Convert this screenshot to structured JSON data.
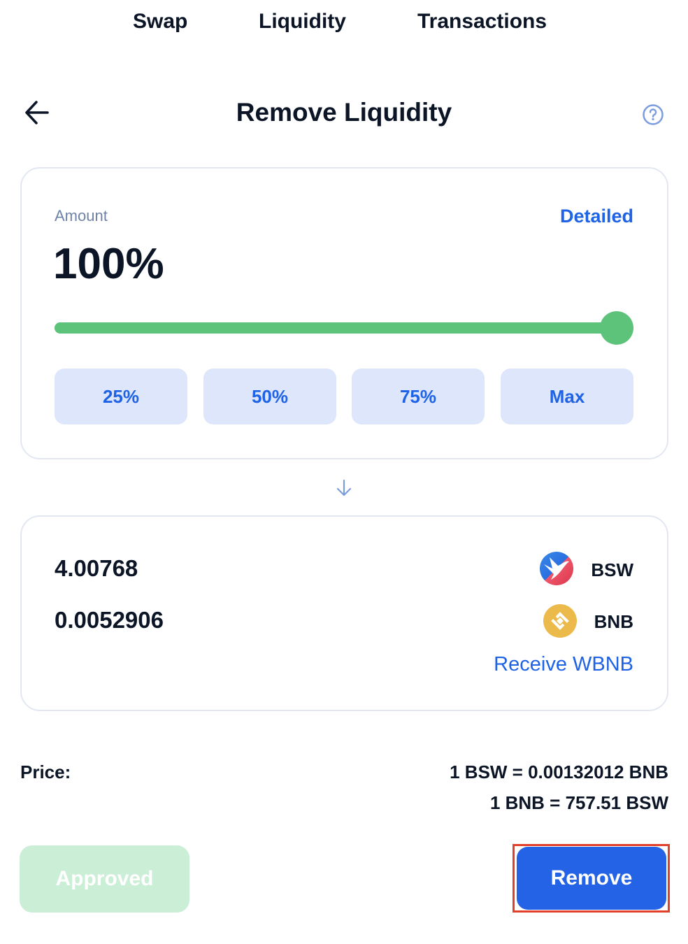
{
  "nav": {
    "swap": "Swap",
    "liquidity": "Liquidity",
    "transactions": "Transactions"
  },
  "header": {
    "title": "Remove Liquidity",
    "back_icon": "arrow-left-icon",
    "help_icon": "question-circle-icon"
  },
  "amount": {
    "label": "Amount",
    "detailed": "Detailed",
    "value": "100%",
    "slider_percent": 100,
    "presets": [
      "25%",
      "50%",
      "75%",
      "Max"
    ],
    "accent": "#5ec37a"
  },
  "output": {
    "tokens": [
      {
        "amount": "4.00768",
        "symbol": "BSW"
      },
      {
        "amount": "0.0052906",
        "symbol": "BNB"
      }
    ],
    "receive_link": "Receive WBNB"
  },
  "price": {
    "label": "Price:",
    "line1": "1 BSW = 0.00132012 BNB",
    "line2": "1 BNB = 757.51 BSW"
  },
  "actions": {
    "approved": "Approved",
    "remove": "Remove",
    "primary": "#2463e6"
  }
}
